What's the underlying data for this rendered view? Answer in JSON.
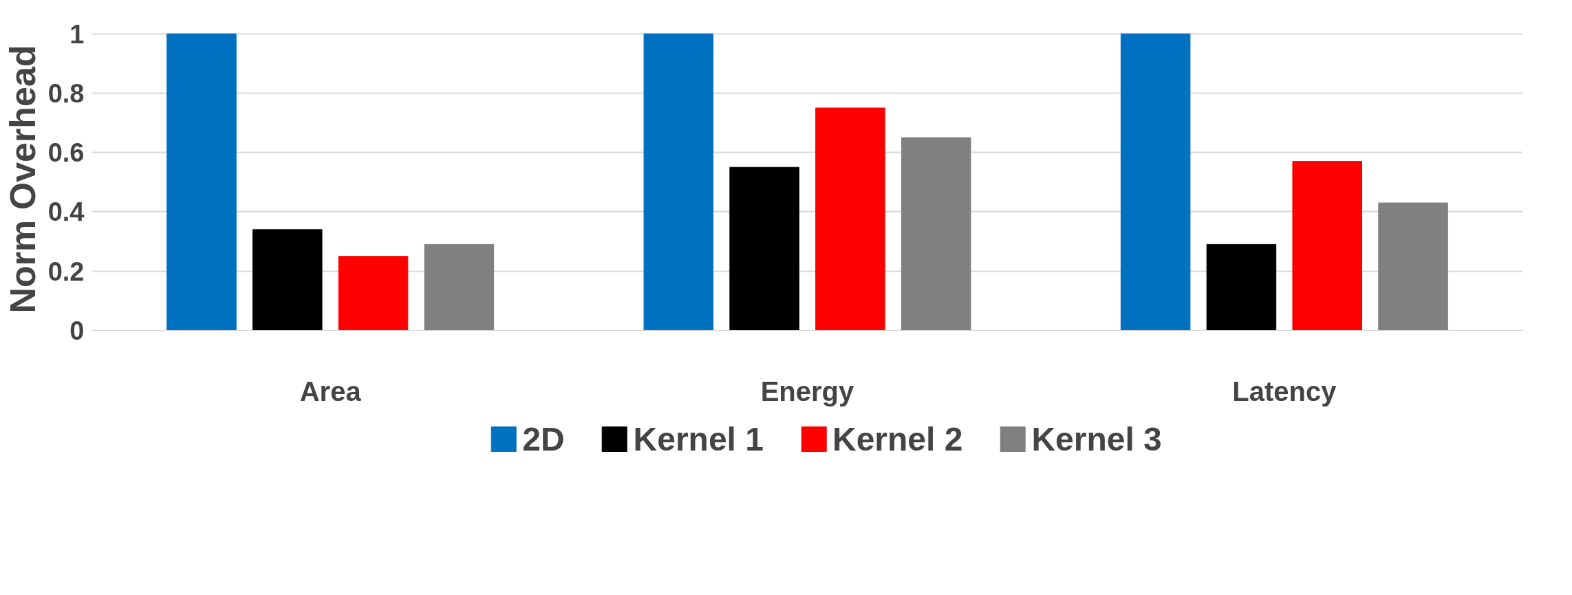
{
  "chart_data": {
    "type": "bar",
    "ylabel": "Norm Overhead",
    "categories": [
      "Area",
      "Energy",
      "Latency"
    ],
    "series": [
      {
        "name": "2D",
        "color": "#0070c0",
        "values": [
          1,
          1,
          1
        ]
      },
      {
        "name": "Kernel 1",
        "color": "#000000",
        "values": [
          0.34,
          0.55,
          0.29
        ]
      },
      {
        "name": "Kernel 2",
        "color": "#ff0000",
        "values": [
          0.25,
          0.75,
          0.57
        ]
      },
      {
        "name": "Kernel 3",
        "color": "#808080",
        "values": [
          0.29,
          0.65,
          0.43
        ]
      }
    ],
    "ylim": [
      0,
      1
    ],
    "yticks": [
      0,
      0.2,
      0.4,
      0.6,
      0.8,
      1
    ],
    "grid": "y",
    "legend": "bottom"
  }
}
